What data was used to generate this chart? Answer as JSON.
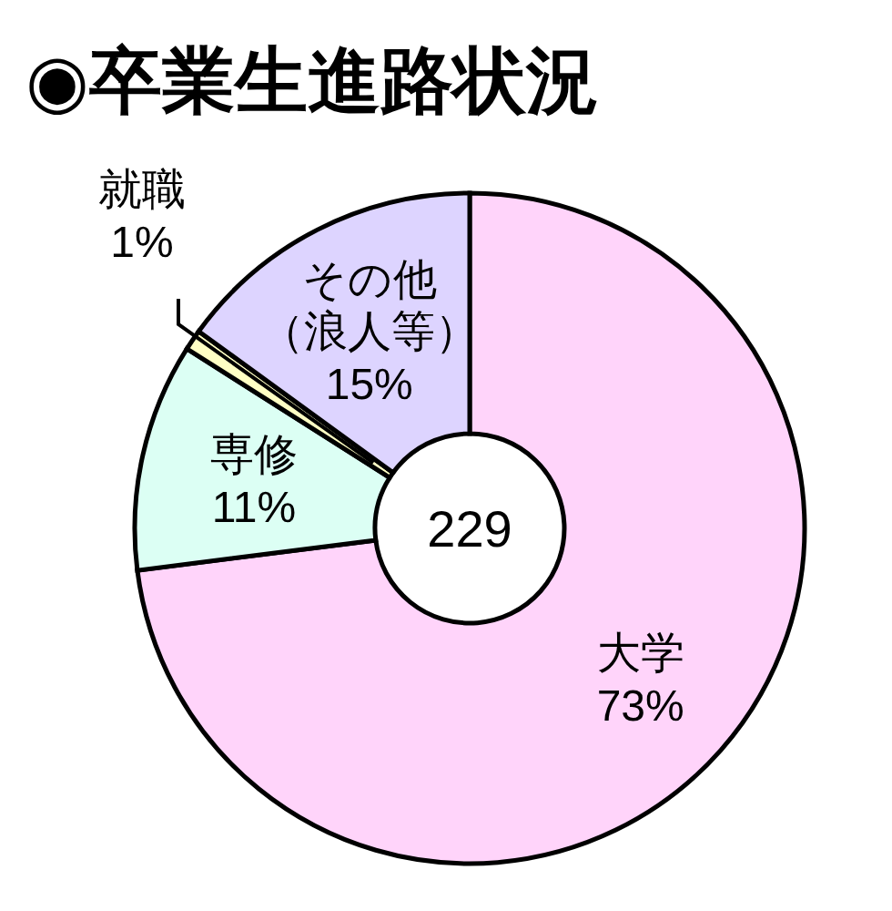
{
  "chart_data": {
    "type": "donut",
    "title": "◉卒業生進路状況",
    "categories": [
      "大学",
      "専修",
      "就職",
      "その他（浪人等）"
    ],
    "values": [
      73,
      11,
      1,
      15
    ],
    "colors": [
      "#ffd4fa",
      "#dcfff4",
      "#ffffc4",
      "#ddd4ff"
    ],
    "value_labels": [
      "73%",
      "11%",
      "1%",
      "15%"
    ],
    "annotations": [
      "229"
    ]
  }
}
